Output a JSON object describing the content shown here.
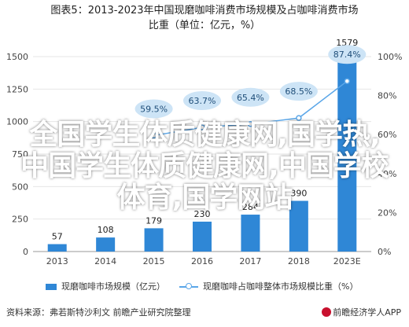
{
  "title": {
    "line1": "图表5：2013-2023年中国现磨咖啡消费市场规模及占咖啡消费市场",
    "line2": "比重（单位：亿元，%）"
  },
  "overlay_text": {
    "line1": "全国学生体质健康网,国学热,",
    "line2": "中国学生体质健康网,中国学校",
    "line3": "体育,国学网站"
  },
  "legend": {
    "bar_label": "现磨咖啡市场规模（亿元）",
    "line_label": "现磨咖啡占咖啡整体市场规模比重（%）"
  },
  "footer": {
    "source": "资料来源：弗若斯特沙利文 前瞻产业研究院整理",
    "brand": "前瞻经济学人APP"
  },
  "chart_data": {
    "type": "bar",
    "categories": [
      "2013",
      "2014",
      "2015",
      "2016",
      "2017",
      "2018",
      "2023E"
    ],
    "bar_values": [
      57,
      108,
      179,
      230,
      284,
      390,
      1579
    ],
    "line_values": [
      null,
      null,
      59.5,
      63.7,
      65.4,
      68.5,
      87.4
    ],
    "line_labels": [
      "59.5%",
      "63.7%",
      "65.4%",
      "68.5%",
      "87.4%"
    ],
    "ylim_left": [
      0,
      1500
    ],
    "yticks_left": [
      "0",
      "250",
      "500",
      "750",
      "1000",
      "1250",
      "1500"
    ],
    "ylim_right": [
      0,
      100
    ],
    "yticks_right": [
      "0%",
      "20%",
      "40%",
      "60%",
      "80%",
      "100%"
    ],
    "colors": {
      "bar": "#2f87d6",
      "line": "#5aa6e8",
      "bubble": "#cde4f6"
    }
  }
}
